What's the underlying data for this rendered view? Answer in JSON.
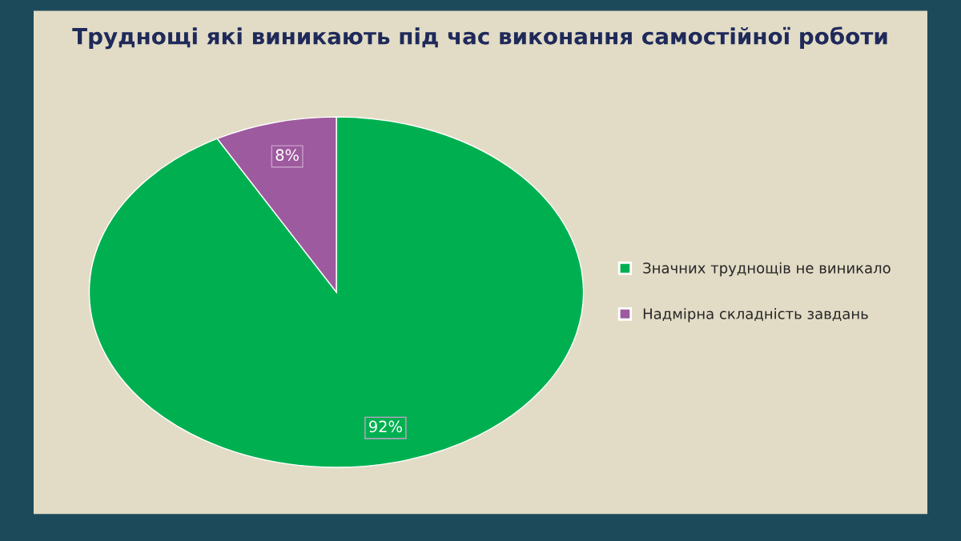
{
  "chart_data": {
    "type": "pie",
    "title": "Труднощі які виникають під час виконання самостійної роботи",
    "categories": [
      "Значних труднощів не виникало",
      "Надмірна складність завдань"
    ],
    "values": [
      92,
      8
    ],
    "colors": [
      "#00b050",
      "#9e5a9e"
    ],
    "value_labels": [
      "92%",
      "8%"
    ],
    "legend": "right"
  }
}
